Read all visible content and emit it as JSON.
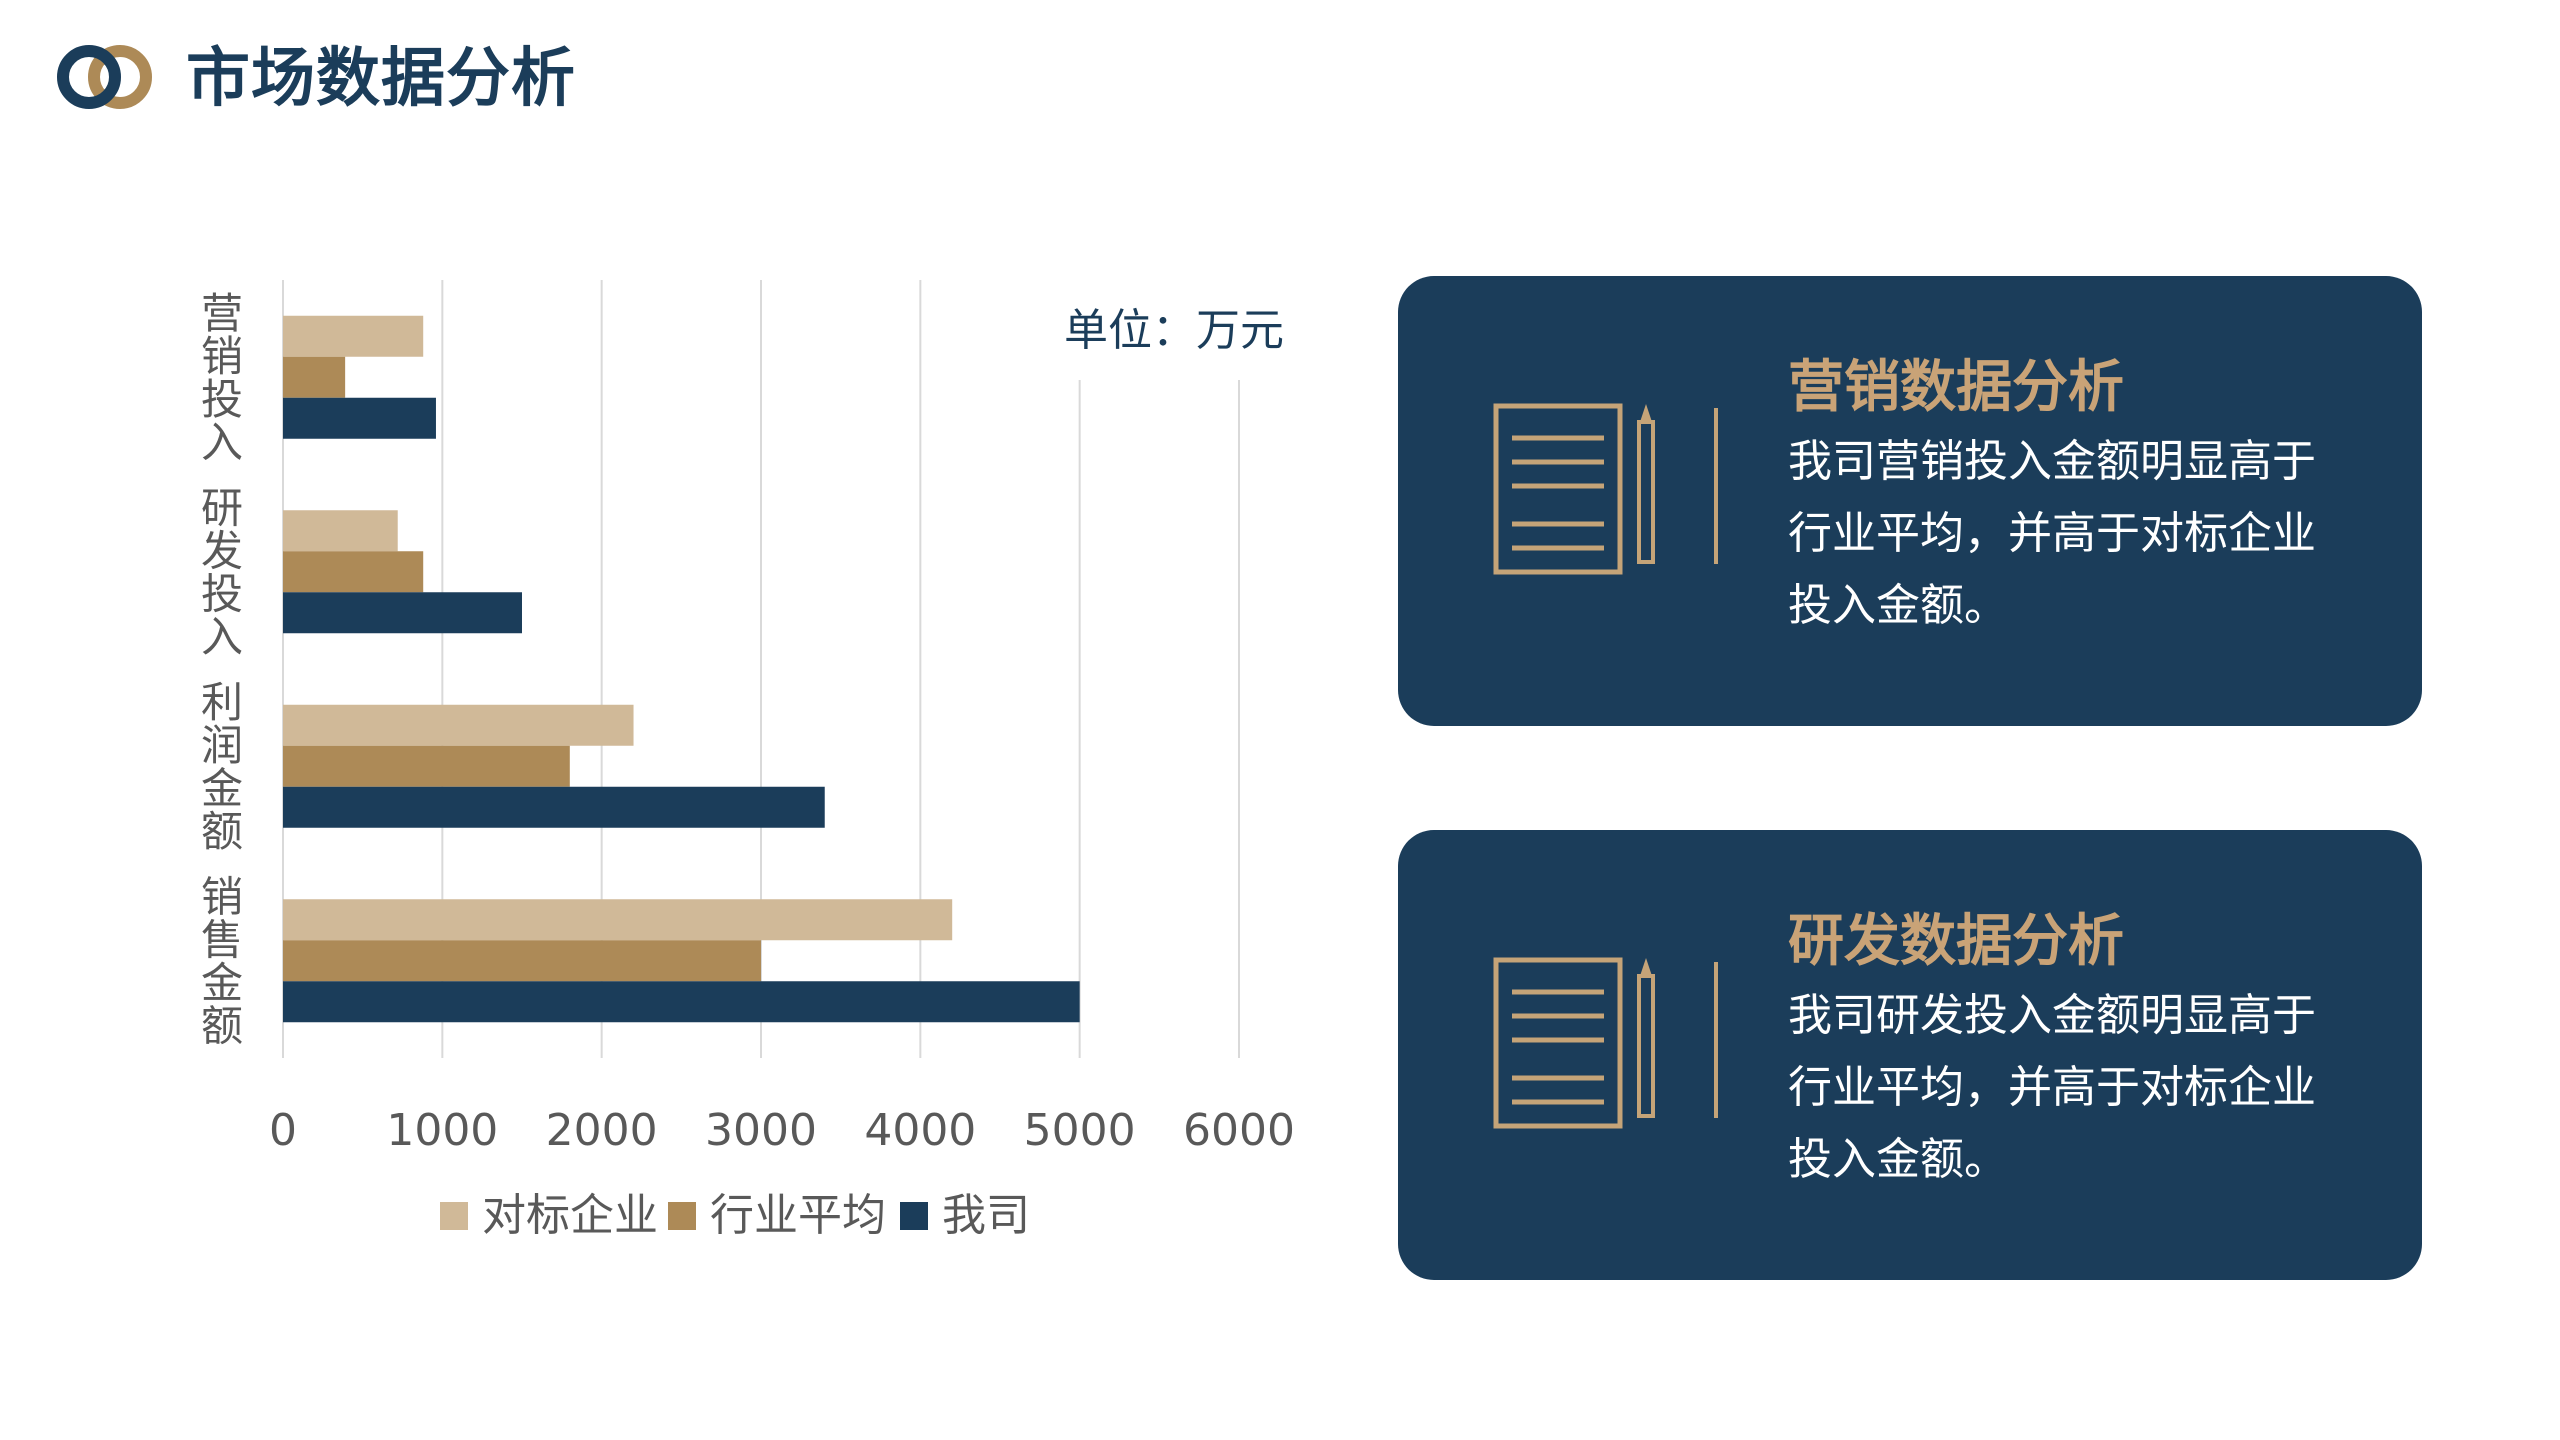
{
  "header": {
    "title": "市场数据分析"
  },
  "colors": {
    "navy": "#1b3d5a",
    "gold": "#ad8a57",
    "beige": "#d0b998",
    "accent_text": "#c9a377"
  },
  "chart_data": {
    "type": "bar",
    "orientation": "horizontal",
    "unit_label": "单位：万元",
    "categories": [
      "营销投入",
      "研发投入",
      "利润金额",
      "销售金额"
    ],
    "series": [
      {
        "name": "对标企业",
        "color": "#d0b998",
        "values": [
          880,
          720,
          2200,
          4200
        ]
      },
      {
        "name": "行业平均",
        "color": "#ad8a57",
        "values": [
          390,
          880,
          1800,
          3000
        ]
      },
      {
        "name": "我司",
        "color": "#1b3d5a",
        "values": [
          960,
          1500,
          3400,
          5000
        ]
      }
    ],
    "xlim": [
      0,
      6000
    ],
    "xticks": [
      0,
      1000,
      2000,
      3000,
      4000,
      5000,
      6000
    ],
    "grid": true,
    "legend": "bottom"
  },
  "cards": [
    {
      "icon": "document-pencil-icon",
      "title": "营销数据分析",
      "text": "我司营销投入金额明显高于行业平均，并高于对标企业投入金额。"
    },
    {
      "icon": "document-pencil-icon",
      "title": "研发数据分析",
      "text": "我司研发投入金额明显高于行业平均，并高于对标企业投入金额。"
    }
  ]
}
